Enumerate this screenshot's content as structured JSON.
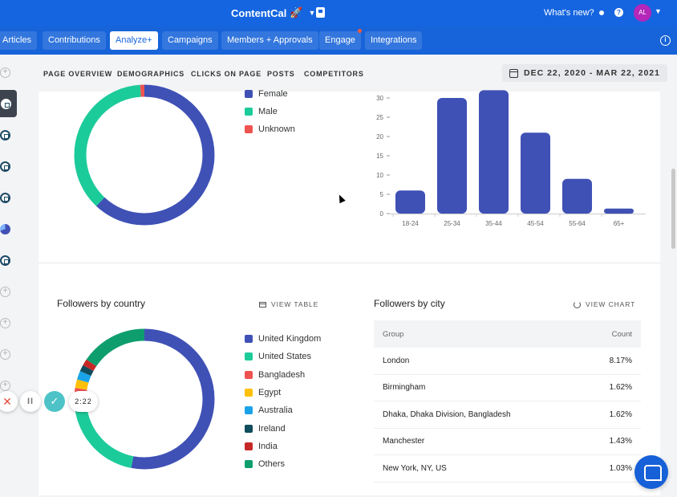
{
  "topbar": {
    "brand": "ContentCal",
    "brand_emoji": "🚀",
    "whats_new": "What's new?",
    "help": "?",
    "avatar": "AL"
  },
  "nav": {
    "tabs": [
      "Articles",
      "Contributions",
      "Analyze+",
      "Campaigns",
      "Members + Approvals",
      "Engage",
      "Integrations"
    ],
    "active": "Analyze+",
    "info": "i"
  },
  "subnav": {
    "links": [
      "PAGE OVERVIEW",
      "DEMOGRAPHICS",
      "CLICKS ON PAGE",
      "POSTS",
      "COMPETITORS"
    ],
    "date_range": "DEC 22, 2020 - MAR 22, 2021"
  },
  "gender": {
    "legend": [
      {
        "label": "Female",
        "color": "#3f51b5"
      },
      {
        "label": "Male",
        "color": "#1ccb9a"
      },
      {
        "label": "Unknown",
        "color": "#ef5350"
      }
    ],
    "chart_data": {
      "type": "pie",
      "labels": [
        "Female",
        "Male",
        "Unknown"
      ],
      "values": [
        62,
        37,
        1
      ],
      "colors": [
        "#3f51b5",
        "#1ccb9a",
        "#ef5350"
      ]
    }
  },
  "age": {
    "chart_data": {
      "type": "bar",
      "categories": [
        "18-24",
        "25-34",
        "35-44",
        "45-54",
        "55-64",
        "65+"
      ],
      "values": [
        6,
        30,
        32,
        21,
        9,
        1.3
      ],
      "yticks": [
        "30",
        "25",
        "20",
        "15",
        "10",
        "5",
        "0"
      ],
      "ylim": [
        0,
        30
      ],
      "color": "#3f51b5"
    }
  },
  "country": {
    "title": "Followers by country",
    "view_table": "VIEW TABLE",
    "legend": [
      {
        "label": "United Kingdom",
        "color": "#3f51b5"
      },
      {
        "label": "United States",
        "color": "#1ccb9a"
      },
      {
        "label": "Bangladesh",
        "color": "#ef5350"
      },
      {
        "label": "Egypt",
        "color": "#ffc107"
      },
      {
        "label": "Australia",
        "color": "#1aa3e8"
      },
      {
        "label": "Ireland",
        "color": "#0f4c5c"
      },
      {
        "label": "India",
        "color": "#c62828"
      },
      {
        "label": "Others",
        "color": "#0e9e6e"
      }
    ],
    "chart_data": {
      "type": "pie",
      "labels": [
        "United Kingdom",
        "United States",
        "Bangladesh",
        "Egypt",
        "Australia",
        "Ireland",
        "India",
        "Others"
      ],
      "values": [
        53,
        22,
        2.5,
        2,
        2,
        1.5,
        1.5,
        15.5
      ],
      "colors": [
        "#3f51b5",
        "#1ccb9a",
        "#ef5350",
        "#ffc107",
        "#1aa3e8",
        "#0f4c5c",
        "#c62828",
        "#0e9e6e"
      ]
    }
  },
  "city": {
    "title": "Followers by city",
    "view_chart": "VIEW CHART",
    "columns": [
      "Group",
      "Count"
    ],
    "rows": [
      {
        "group": "London",
        "count": "8.17%"
      },
      {
        "group": "Birmingham",
        "count": "1.62%"
      },
      {
        "group": "Dhaka, Dhaka Division, Bangladesh",
        "count": "1.62%"
      },
      {
        "group": "Manchester",
        "count": "1.43%"
      },
      {
        "group": "New York, NY, US",
        "count": "1.03%"
      }
    ]
  },
  "recorder": {
    "close": "✕",
    "pause": "II",
    "done": "✓",
    "timer": "2:22"
  }
}
